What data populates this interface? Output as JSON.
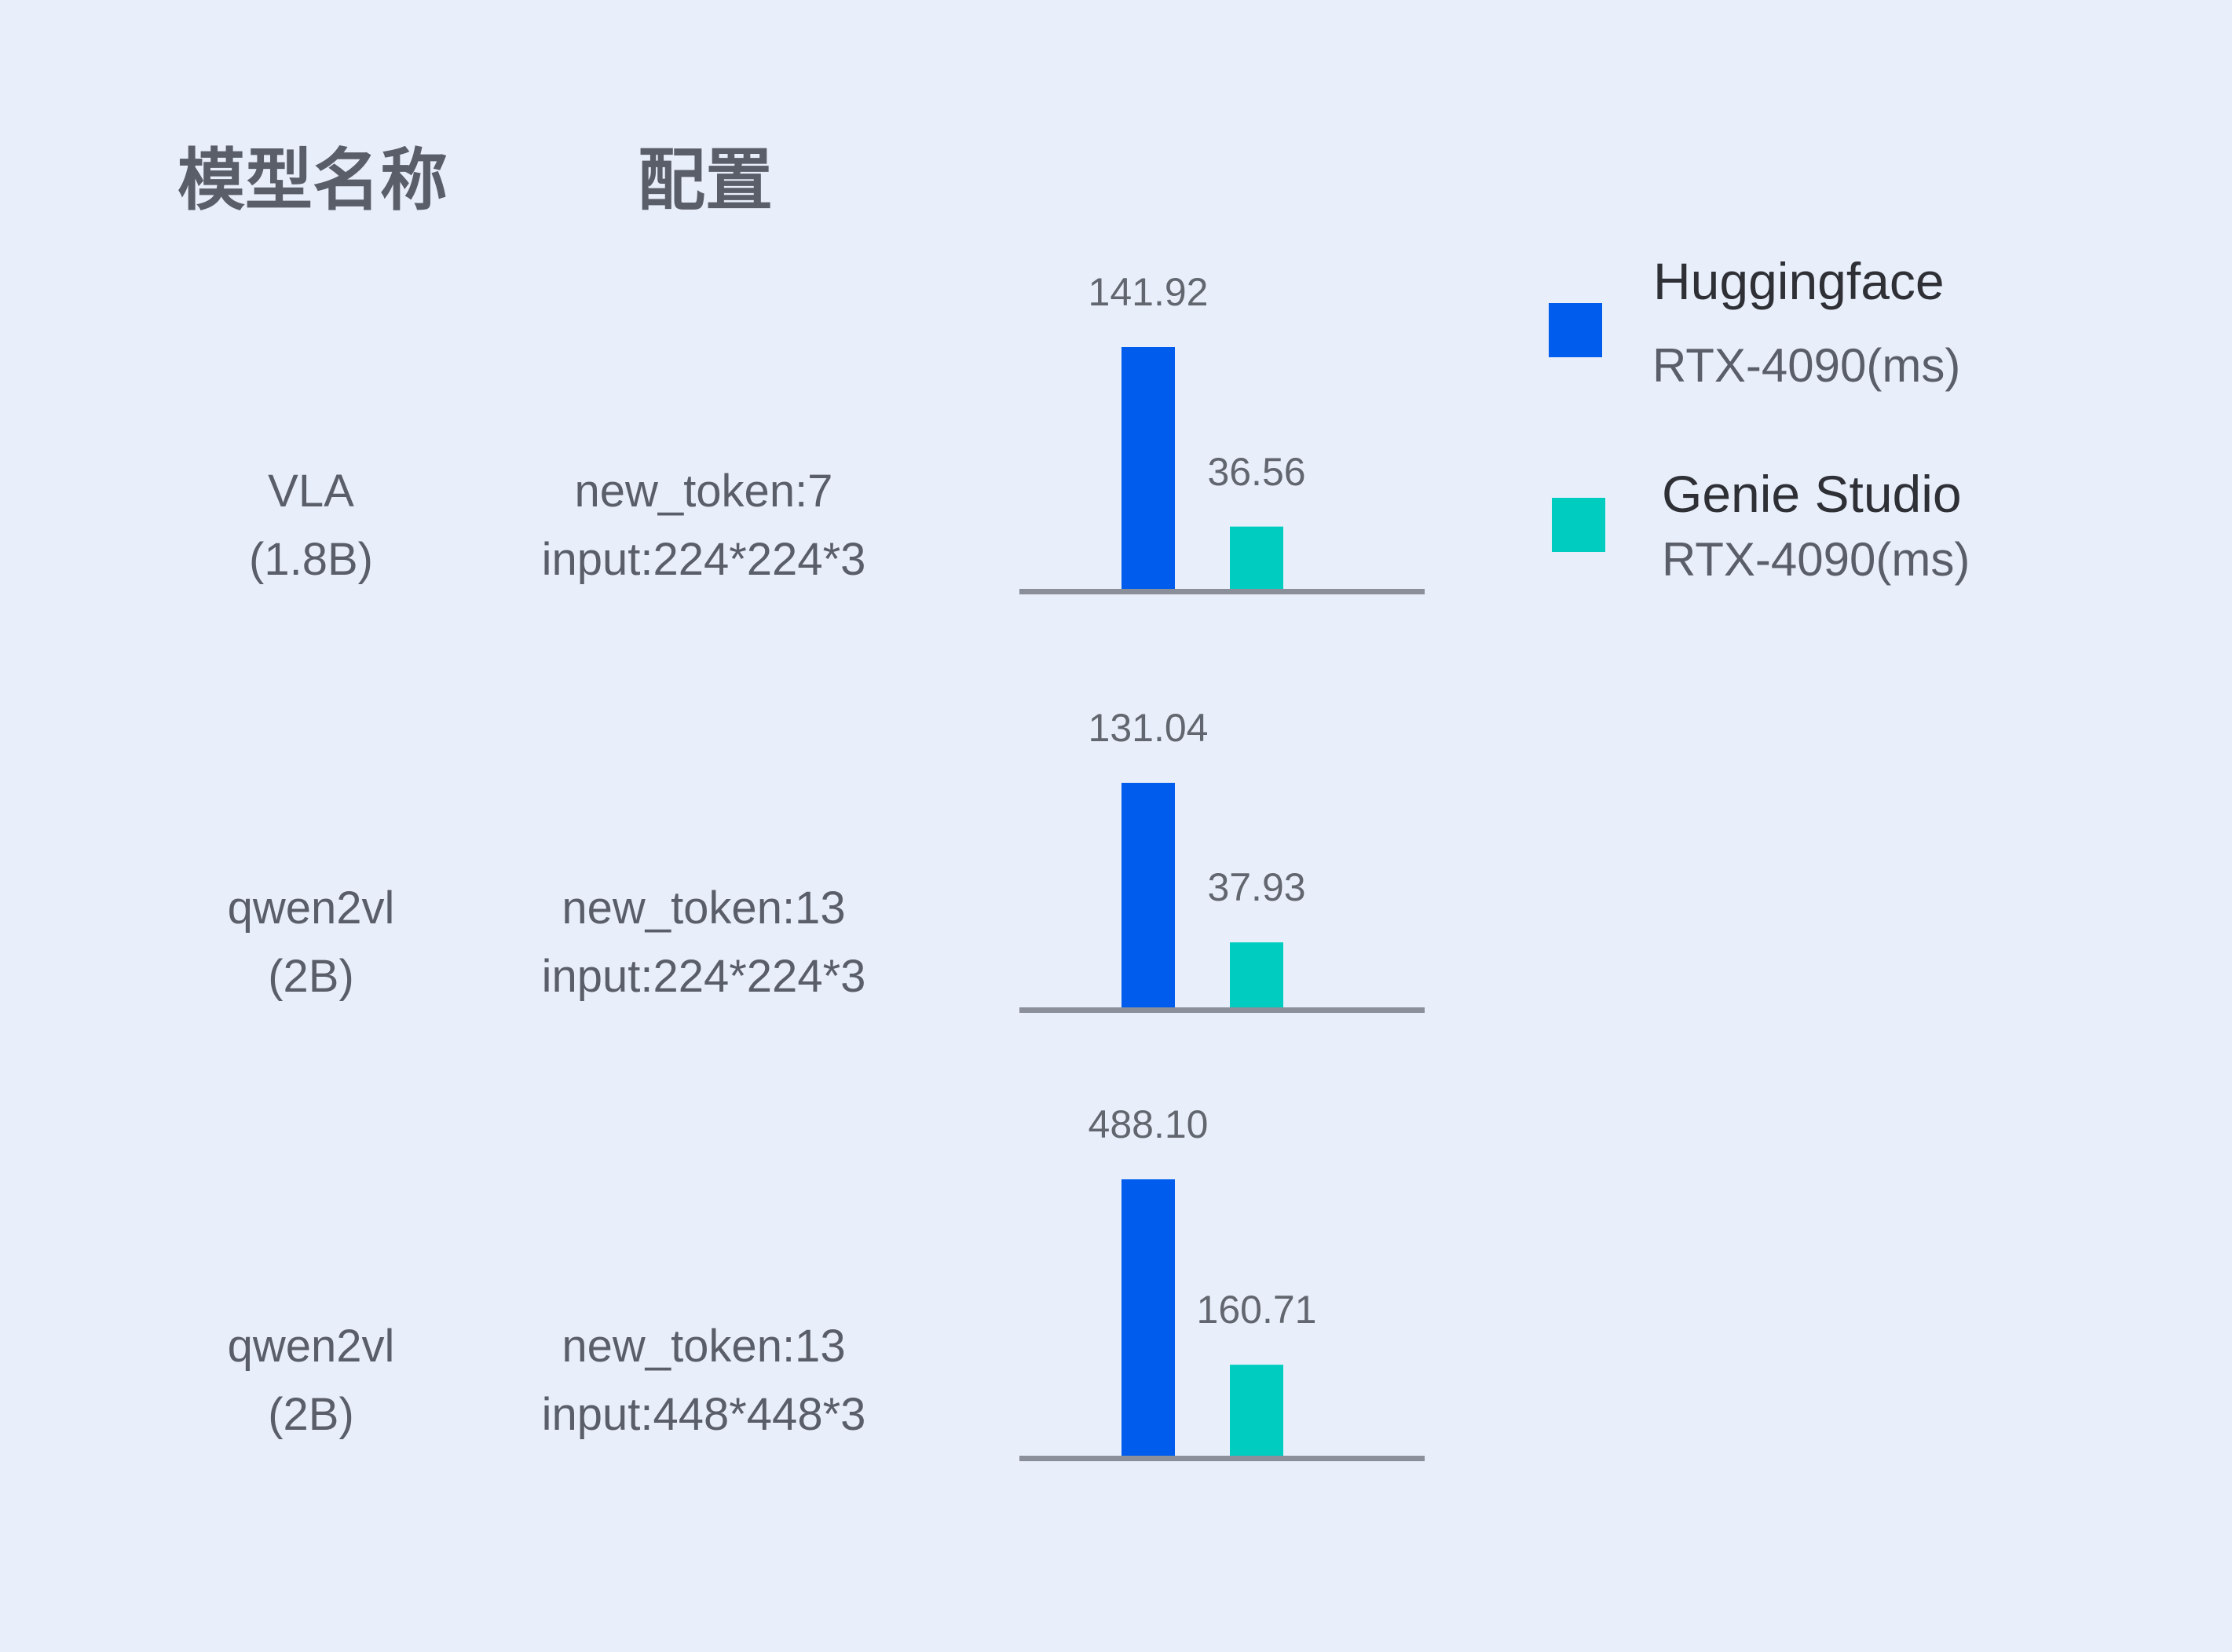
{
  "headers": {
    "model": "模型名称",
    "config": "配置"
  },
  "rows": [
    {
      "model": "VLA",
      "size": "(1.8B)",
      "config_line1": "new_token:7",
      "config_line2": "input:224*224*3"
    },
    {
      "model": "qwen2vl",
      "size": "(2B)",
      "config_line1": "new_token:13",
      "config_line2": "input:224*224*3"
    },
    {
      "model": "qwen2vl",
      "size": "(2B)",
      "config_line1": "new_token:13",
      "config_line2": "input:448*448*3"
    }
  ],
  "legend": [
    {
      "name": "Huggingface",
      "sub": "RTX-4090(ms)",
      "color": "#005ced"
    },
    {
      "name": "Genie Studio",
      "sub": "RTX-4090(ms)",
      "color": "#00ccc0"
    }
  ],
  "chart_data": {
    "type": "bar",
    "categories": [
      "VLA (1.8B)",
      "qwen2vl (2B) 224*224*3",
      "qwen2vl (2B) 448*448*3"
    ],
    "series": [
      {
        "name": "Huggingface RTX-4090(ms)",
        "values": [
          141.92,
          131.04,
          488.1
        ],
        "labels": [
          "141.92",
          "131.04",
          "488.10"
        ],
        "color": "#005ced"
      },
      {
        "name": "Genie Studio RTX-4090(ms)",
        "values": [
          36.56,
          37.93,
          160.71
        ],
        "labels": [
          "36.56",
          "37.93",
          "160.71"
        ],
        "color": "#00ccc0"
      }
    ],
    "axis_color": "#8a8f9a",
    "grid": false,
    "legend_position": "right"
  }
}
